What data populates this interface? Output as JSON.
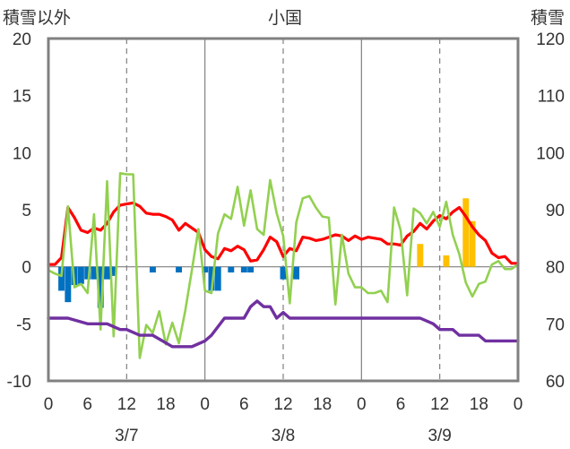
{
  "chart_data": {
    "type": "bar+line",
    "title": "小国",
    "ylabel_left": "積雪以外",
    "ylabel_right": "積雪",
    "ylim_left": [
      -10,
      20
    ],
    "ylim_right": [
      60,
      120
    ],
    "yticks_left": [
      20,
      15,
      10,
      5,
      0,
      -5,
      -10
    ],
    "yticks_right": [
      120,
      110,
      100,
      90,
      80,
      70,
      60
    ],
    "x_range_hours": [
      0,
      72
    ],
    "xticks": [
      "0",
      "6",
      "12",
      "18",
      "0",
      "6",
      "12",
      "18",
      "0",
      "6",
      "12",
      "18",
      "0"
    ],
    "date_labels": [
      "3/7",
      "3/8",
      "3/9"
    ],
    "colors": {
      "frame": "#808080",
      "grid": "#808080",
      "temperature": "#ff0000",
      "wind": "#92d050",
      "snow_depth": "#7030a0",
      "precip": "#0070c0",
      "snowfall": "#ffc000"
    },
    "series": [
      {
        "key": "precip",
        "kind": "bar",
        "axis": "left",
        "x": [
          2,
          3,
          4,
          5,
          6,
          7,
          8,
          9,
          10,
          16,
          20,
          24,
          25,
          26,
          28,
          30,
          31,
          36,
          38
        ],
        "values": [
          -2.1,
          -3.1,
          -1.6,
          -1.5,
          -1.1,
          -1.1,
          -3.6,
          -1.1,
          -0.8,
          -0.5,
          -0.5,
          -0.5,
          -2.1,
          -2.1,
          -0.5,
          -0.5,
          -0.5,
          -1.1,
          -1.1
        ]
      },
      {
        "key": "snowfall",
        "kind": "bar",
        "axis": "left",
        "x": [
          57,
          61,
          64,
          65
        ],
        "values": [
          2,
          1,
          6,
          4
        ]
      },
      {
        "key": "temperature",
        "kind": "line",
        "axis": "left",
        "x": [
          0,
          1,
          2,
          3,
          4,
          5,
          6,
          7,
          8,
          9,
          10,
          11,
          12,
          13,
          14,
          15,
          16,
          17,
          18,
          19,
          20,
          21,
          22,
          23,
          24,
          25,
          26,
          27,
          28,
          29,
          30,
          31,
          32,
          33,
          34,
          35,
          36,
          37,
          38,
          39,
          40,
          41,
          42,
          43,
          44,
          45,
          46,
          47,
          48,
          49,
          50,
          51,
          52,
          53,
          54,
          55,
          56,
          57,
          58,
          59,
          60,
          61,
          62,
          63,
          64,
          65,
          66,
          67,
          68,
          69,
          70,
          71,
          72
        ],
        "values": [
          0.2,
          0.2,
          0.8,
          5.2,
          4.3,
          3.2,
          3.0,
          3.4,
          3.2,
          3.8,
          4.8,
          5.4,
          5.5,
          5.6,
          5.3,
          4.7,
          4.6,
          4.6,
          4.4,
          4.1,
          3.2,
          3.8,
          3.4,
          3.0,
          1.5,
          0.9,
          0.7,
          1.6,
          1.4,
          1.8,
          1.5,
          0.5,
          0.6,
          1.5,
          2.6,
          2.2,
          0.9,
          1.6,
          1.4,
          2.6,
          2.5,
          2.3,
          2.4,
          2.6,
          2.8,
          2.7,
          2.3,
          2.7,
          2.4,
          2.6,
          2.5,
          2.4,
          2.0,
          2.0,
          1.9,
          2.7,
          3.1,
          3.8,
          3.3,
          4.0,
          4.5,
          4.2,
          4.8,
          5.2,
          4.4,
          3.5,
          2.8,
          2.3,
          1.2,
          0.8,
          0.9,
          0.3,
          0.3
        ]
      },
      {
        "key": "wind",
        "kind": "line",
        "axis": "left",
        "x": [
          0,
          1,
          2,
          3,
          4,
          5,
          6,
          7,
          8,
          9,
          10,
          11,
          12,
          13,
          14,
          15,
          16,
          17,
          18,
          19,
          20,
          21,
          22,
          23,
          24,
          25,
          26,
          27,
          28,
          29,
          30,
          31,
          32,
          33,
          34,
          35,
          36,
          37,
          38,
          39,
          40,
          41,
          42,
          43,
          44,
          45,
          46,
          47,
          48,
          49,
          50,
          51,
          52,
          53,
          54,
          55,
          56,
          57,
          58,
          59,
          60,
          61,
          62,
          63,
          64,
          65,
          66,
          67,
          68,
          69,
          70,
          71,
          72
        ],
        "values": [
          -0.3,
          -0.6,
          -0.8,
          5.3,
          -1.8,
          -1.5,
          -2.3,
          4.6,
          -5.5,
          7.5,
          -6.1,
          8.2,
          8.1,
          8.1,
          -8.0,
          -5.1,
          -5.8,
          -3.9,
          -6.8,
          -4.9,
          -6.7,
          -3.8,
          -0.3,
          3.3,
          -2.1,
          -2.3,
          2.9,
          4.6,
          4.2,
          7.0,
          3.6,
          6.7,
          3.3,
          2.8,
          7.6,
          4.7,
          2.7,
          -3.2,
          3.9,
          6.0,
          6.2,
          5.2,
          4.4,
          4.3,
          -3.3,
          2.8,
          -0.6,
          -1.8,
          -1.8,
          -2.3,
          -2.3,
          -2.1,
          -3.1,
          5.2,
          3.2,
          -2.5,
          5.1,
          4.7,
          3.8,
          4.8,
          3.5,
          5.7,
          2.8,
          1.1,
          -1.4,
          -2.6,
          -1.5,
          -1.3,
          0.2,
          0.5,
          -0.2,
          -0.2,
          0.2
        ]
      },
      {
        "key": "snow_depth",
        "kind": "line",
        "axis": "right",
        "x": [
          0,
          3,
          6,
          9,
          11,
          12,
          14,
          16,
          19,
          21,
          22,
          24,
          25,
          27,
          29,
          30,
          31,
          32,
          33,
          34,
          35,
          36,
          37,
          38,
          40,
          43,
          45,
          48,
          51,
          54,
          57,
          59,
          60,
          61,
          62,
          63,
          65,
          66,
          67,
          68,
          69,
          70,
          71,
          72
        ],
        "values": [
          71,
          71,
          70,
          70,
          69,
          69,
          68,
          68,
          66,
          66,
          66,
          67,
          68,
          71,
          71,
          71,
          73,
          74,
          73,
          73,
          71,
          72,
          71,
          71,
          71,
          71,
          71,
          71,
          71,
          71,
          71,
          70,
          69,
          69,
          69,
          68,
          68,
          68,
          67,
          67,
          67,
          67,
          67,
          67
        ]
      }
    ]
  }
}
